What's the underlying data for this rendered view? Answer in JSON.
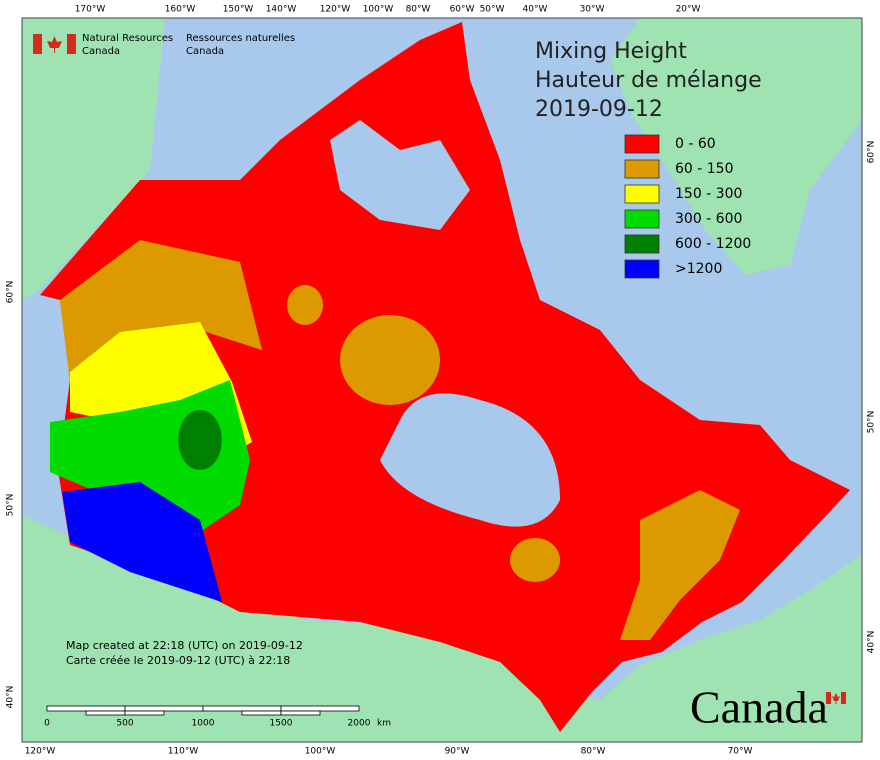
{
  "header": {
    "department_en": [
      "Natural Resources",
      "Canada"
    ],
    "department_fr": [
      "Ressources naturelles",
      "Canada"
    ]
  },
  "title": [
    "Mixing Height",
    "Hauteur de mélange",
    "2019-09-12"
  ],
  "legend": [
    {
      "label": "0 - 60",
      "color": "#ff0000"
    },
    {
      "label": "60 - 150",
      "color": "#dc9a00"
    },
    {
      "label": "150 - 300",
      "color": "#ffff00"
    },
    {
      "label": "300 - 600",
      "color": "#00dc00"
    },
    {
      "label": "600 - 1200",
      "color": "#008000"
    },
    {
      "label": ">1200",
      "color": "#0000ff"
    }
  ],
  "graticule": {
    "top": [
      "170°W",
      "160°W",
      "150°W",
      "140°W",
      "120°W",
      "100°W",
      "80°W",
      "60°W",
      "50°W",
      "40°W",
      "30°W",
      "20°W"
    ],
    "bottom": [
      "120°W",
      "110°W",
      "100°W",
      "90°W",
      "80°W",
      "70°W"
    ],
    "left": [
      "60°N",
      "50°N",
      "40°N"
    ],
    "right": [
      "60°N",
      "50°N",
      "40°N"
    ]
  },
  "footer": [
    "Map created at 22:18 (UTC) on 2019-09-12",
    "Carte créée le 2019-09-12 (UTC) à 22:18"
  ],
  "scale_bar": {
    "labels": [
      "0",
      "500",
      "1000",
      "1500",
      "2000"
    ],
    "unit": "km"
  },
  "wordmark": "Canada"
}
